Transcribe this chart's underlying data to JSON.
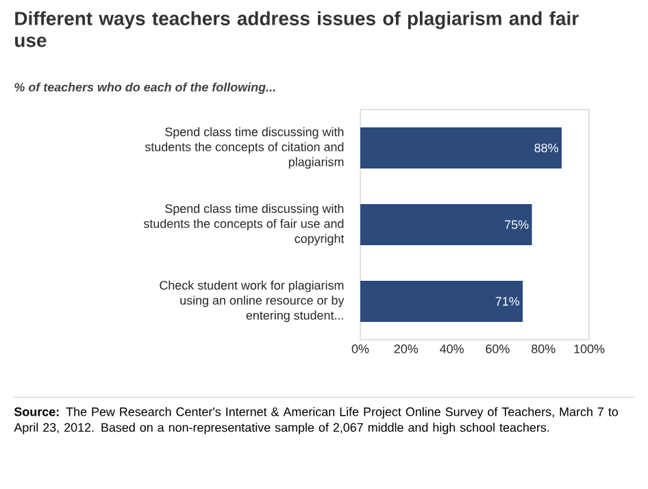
{
  "chart_data": {
    "type": "bar",
    "orientation": "horizontal",
    "title": "Different ways teachers address issues of plagiarism and fair use",
    "subtitle": "% of teachers who do each of the following...",
    "categories": [
      "Spend class time discussing with students the concepts of citation and plagiarism",
      "Spend class time discussing with students the concepts of fair use and copyright",
      "Check student work for plagiarism using an online resource or by entering student..."
    ],
    "values": [
      88,
      75,
      71
    ],
    "color": "#2c4a7c",
    "value_labels": [
      "88%",
      "75%",
      "71%"
    ],
    "xlim": [
      0,
      100
    ],
    "xticks": [
      {
        "value": 0,
        "label": "0%"
      },
      {
        "value": 20,
        "label": "20%"
      },
      {
        "value": 40,
        "label": "40%"
      },
      {
        "value": 60,
        "label": "60%"
      },
      {
        "value": 80,
        "label": "80%"
      },
      {
        "value": 100,
        "label": "100%"
      }
    ],
    "grid": false,
    "annotations": [
      "**Source:** The Pew Research Center's Internet & American Life Project Online Survey of Teachers, March 7 to April 23, 2012.  Based on a non-representative sample of 2,067 middle and high school teachers."
    ]
  }
}
